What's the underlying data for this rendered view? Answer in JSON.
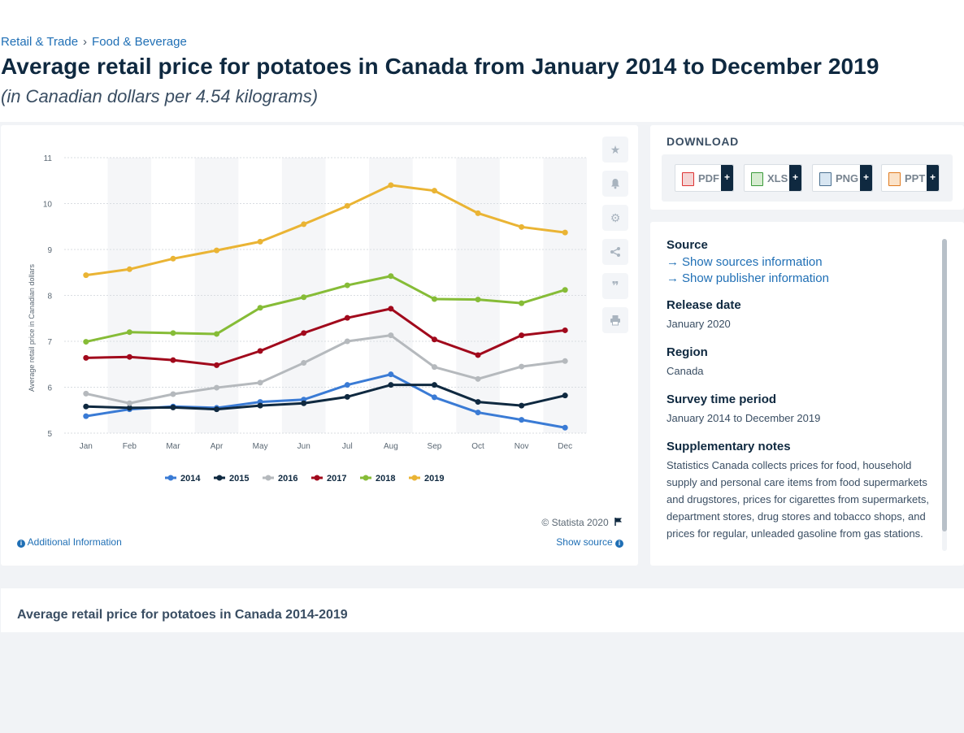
{
  "breadcrumb": {
    "item1": "Retail & Trade",
    "separator": "›",
    "item2": "Food & Beverage"
  },
  "title": "Average retail price for potatoes in Canada from January 2014 to December 2019",
  "subtitle": "(in Canadian dollars per 4.54 kilograms)",
  "chart_data": {
    "type": "line",
    "title": "",
    "xlabel": "",
    "ylabel": "Average retail price in Canadian dollars",
    "categories": [
      "Jan",
      "Feb",
      "Mar",
      "Apr",
      "May",
      "Jun",
      "Jul",
      "Aug",
      "Sep",
      "Oct",
      "Nov",
      "Dec"
    ],
    "yticks": [
      5,
      6,
      7,
      8,
      9,
      10,
      11
    ],
    "ylim": [
      5,
      11
    ],
    "grid": true,
    "legend_position": "bottom",
    "series": [
      {
        "name": "2014",
        "color": "#3a7bd5",
        "values": [
          5.37,
          5.52,
          5.58,
          5.55,
          5.68,
          5.73,
          6.05,
          6.28,
          5.78,
          5.45,
          5.29,
          5.12
        ]
      },
      {
        "name": "2015",
        "color": "#0f2940",
        "values": [
          5.58,
          5.55,
          5.56,
          5.52,
          5.6,
          5.65,
          5.79,
          6.05,
          6.05,
          5.68,
          5.6,
          5.82
        ]
      },
      {
        "name": "2016",
        "color": "#b5b9bd",
        "values": [
          5.86,
          5.65,
          5.85,
          5.99,
          6.1,
          6.53,
          7.0,
          7.13,
          6.44,
          6.18,
          6.45,
          6.57
        ]
      },
      {
        "name": "2017",
        "color": "#a1091c",
        "values": [
          6.64,
          6.66,
          6.59,
          6.48,
          6.79,
          7.18,
          7.51,
          7.71,
          7.04,
          6.7,
          7.13,
          7.24
        ]
      },
      {
        "name": "2018",
        "color": "#86bc37",
        "values": [
          6.99,
          7.2,
          7.18,
          7.16,
          7.73,
          7.96,
          8.22,
          8.42,
          7.92,
          7.91,
          7.83,
          8.12
        ]
      },
      {
        "name": "2019",
        "color": "#eab434",
        "values": [
          8.44,
          8.57,
          8.8,
          8.98,
          9.17,
          9.55,
          9.95,
          10.4,
          10.28,
          9.79,
          9.49,
          9.37
        ]
      }
    ]
  },
  "chart_footer": {
    "copyright": "© Statista 2020",
    "additional_info": "Additional Information",
    "show_source": "Show source"
  },
  "toolbar": {
    "icons": [
      "star-icon",
      "bell-icon",
      "gear-icon",
      "share-icon",
      "quote-icon",
      "print-icon"
    ]
  },
  "download": {
    "title": "DOWNLOAD",
    "pdf": "PDF",
    "xls": "XLS",
    "png": "PNG",
    "ppt": "PPT",
    "plus": "+"
  },
  "meta": {
    "source_heading": "Source",
    "show_sources": "Show sources information",
    "show_publisher": "Show publisher information",
    "release_heading": "Release date",
    "release_value": "January 2020",
    "region_heading": "Region",
    "region_value": "Canada",
    "survey_heading": "Survey time period",
    "survey_value": "January 2014 to December 2019",
    "notes_heading": "Supplementary notes",
    "notes_value": "Statistics Canada collects prices for food, household supply and personal care items from food supermarkets and drugstores, prices for cigarettes from supermarkets, department stores, drug stores and tobacco shops, and prices for regular, unleaded gasoline from gas stations."
  },
  "bottom": {
    "title": "Average retail price for potatoes in Canada 2014-2019"
  }
}
